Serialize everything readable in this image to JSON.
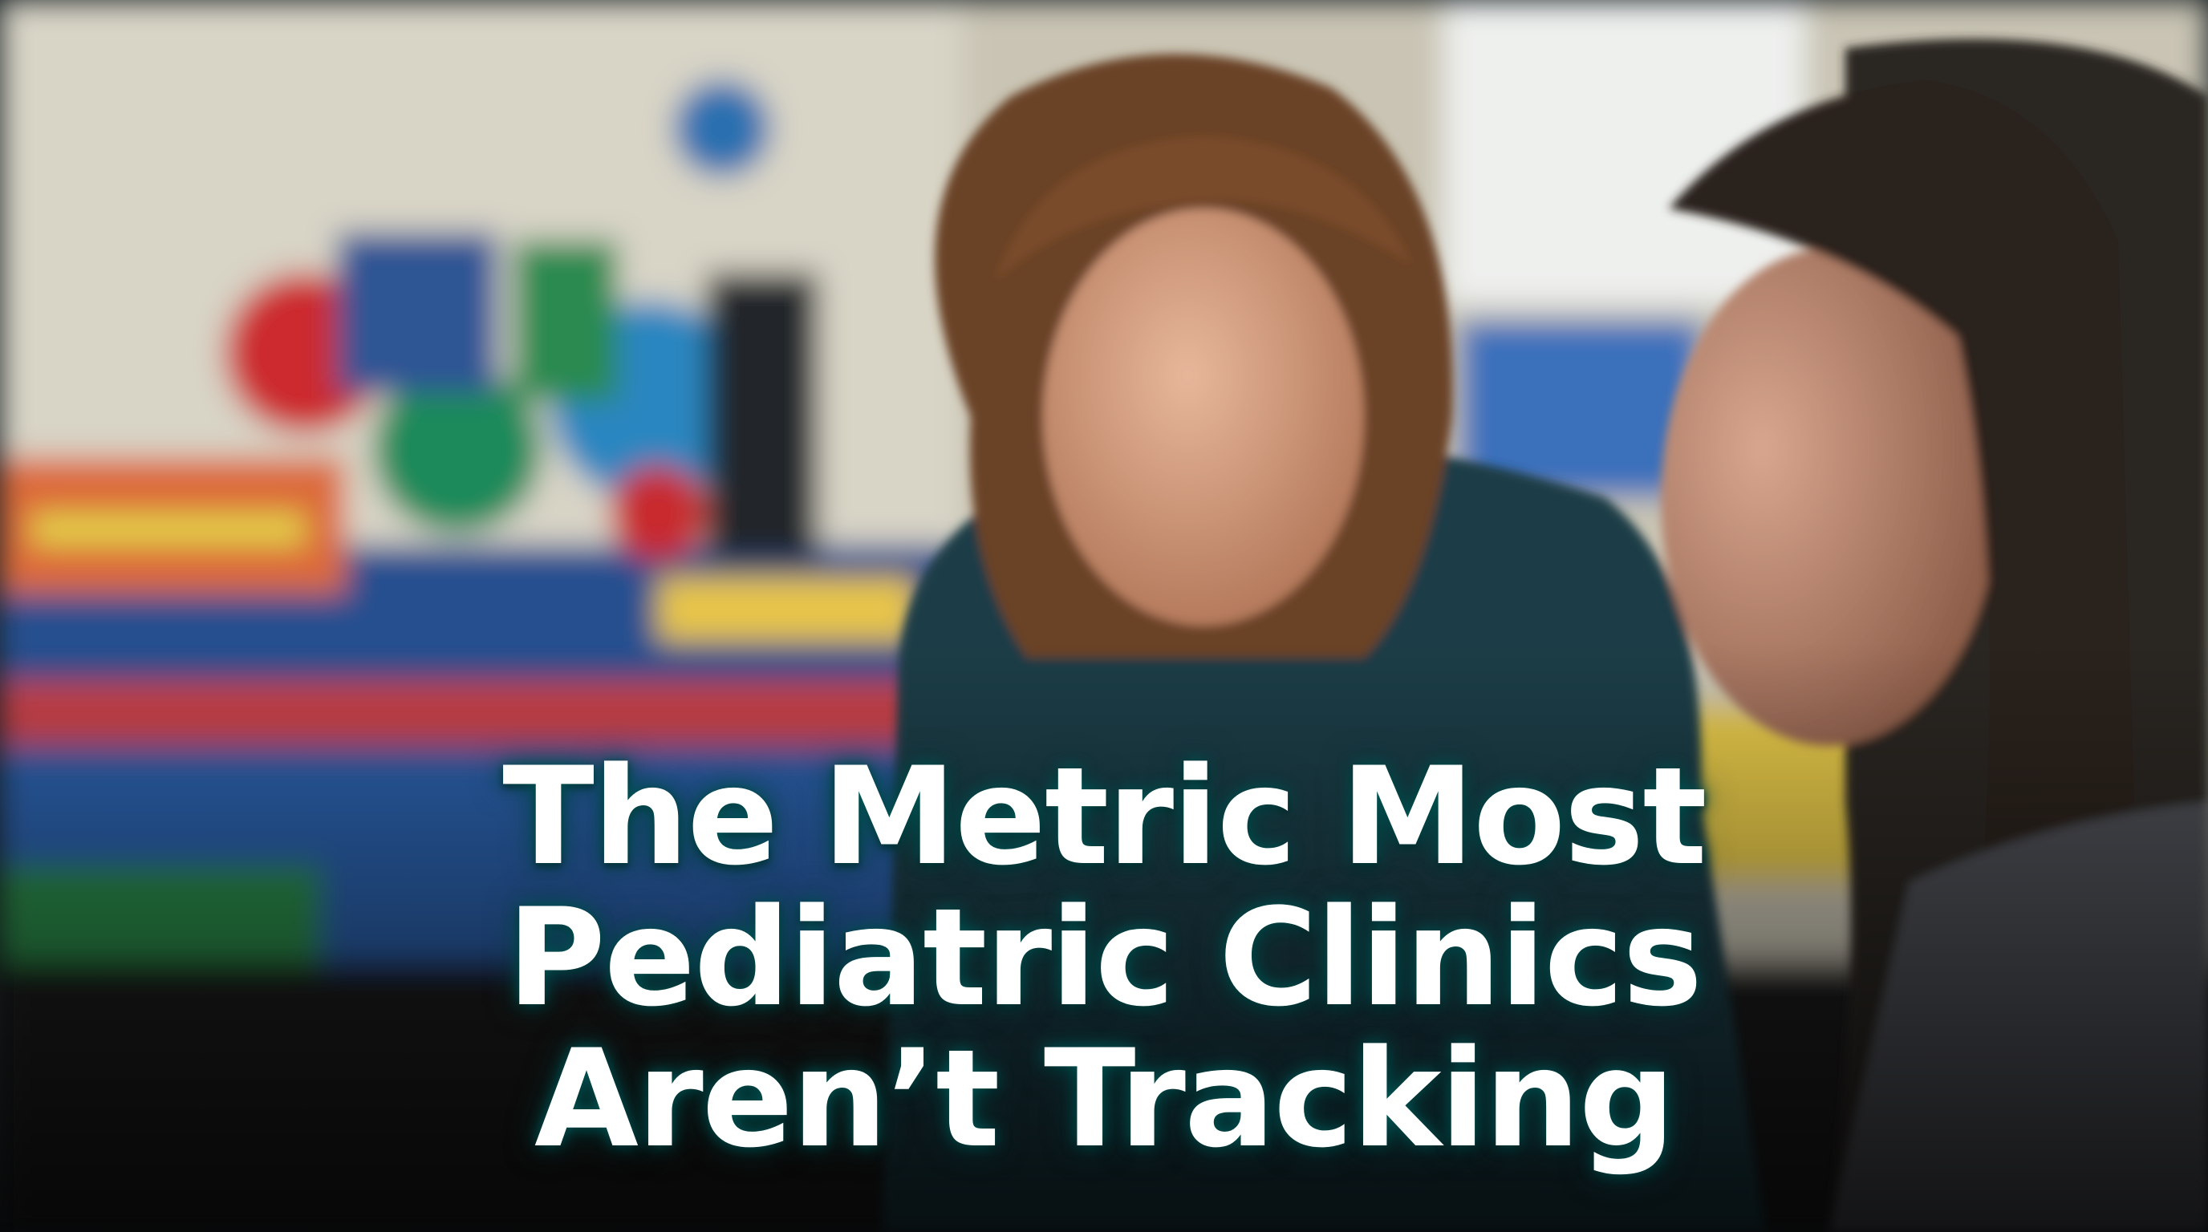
{
  "headline": {
    "lines": [
      "The Metric Most",
      "Pediatric Clinics",
      "Aren’t Tracking"
    ]
  }
}
